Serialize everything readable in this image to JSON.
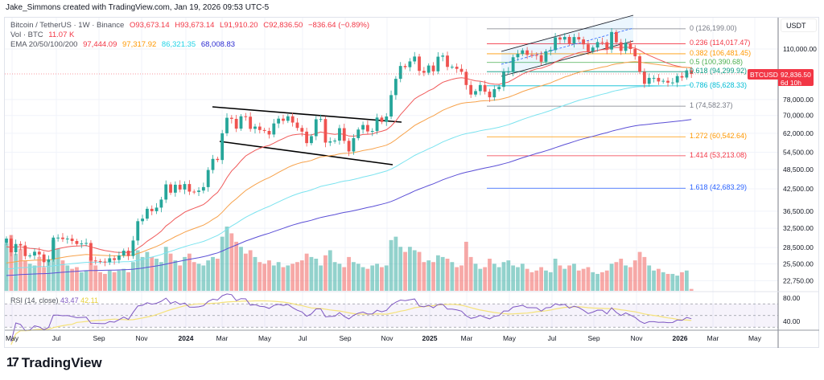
{
  "header": {
    "credit": "Jake_Simmons created with TradingView.com, Jan 19, 2026 09:53 UTC-5"
  },
  "legend": {
    "symbol": "Bitcoin / TetherUS · 1W · Binance",
    "open": "O93,673.14",
    "high": "H93,673.14",
    "low": "L91,910.20",
    "close": "C92,836.50",
    "change": "−836.64 (−0.89%)",
    "vol_label": "Vol · BTC",
    "vol_value": "11.07 K",
    "ema_label": "EMA 20/50/100/200",
    "ema20": "97,444.09",
    "ema50": "97,317.92",
    "ema100": "86,321.35",
    "ema200": "68,008.83"
  },
  "colors": {
    "up": "#26a69a",
    "down": "#ef5350",
    "ema20": "#f05a5a",
    "ema50": "#f7a24b",
    "ema100": "#7be3ef",
    "ema200": "#5b4fd6",
    "rsi": "#7e57c2",
    "rsi_ma": "#f5e27a",
    "accent": "#f23645"
  },
  "price_axis": {
    "unit": "USDT",
    "ticks": [
      "110,000.00",
      "78,000.00",
      "70,000.00",
      "62,000.00",
      "54,500.00",
      "48,500.00",
      "42,500.00",
      "36,500.00",
      "32,500.00",
      "28,500.00",
      "25,500.00",
      "22,750.00"
    ],
    "scale": "log"
  },
  "current": {
    "symbol": "BTCUSDT",
    "price": "92,836.50",
    "countdown": "6d 10h"
  },
  "fib": [
    {
      "label": "0 (126,199.00)",
      "value": 126199,
      "color": "#787b86"
    },
    {
      "label": "0.236 (114,017.47)",
      "value": 114017.47,
      "color": "#f23645"
    },
    {
      "label": "0.382 (106,481.45)",
      "value": 106481.45,
      "color": "#ff9800"
    },
    {
      "label": "0.5 (100,390.68)",
      "value": 100390.68,
      "color": "#4caf50"
    },
    {
      "label": "0.618 (94,299.92)",
      "value": 94299.92,
      "color": "#089981"
    },
    {
      "label": "0.786 (85,628.33)",
      "value": 85628.33,
      "color": "#00bcd4"
    },
    {
      "label": "1 (74,582.37)",
      "value": 74582.37,
      "color": "#787b86"
    },
    {
      "label": "1.272 (60,542.64)",
      "value": 60542.64,
      "color": "#ff9800"
    },
    {
      "label": "1.414 (53,213.08)",
      "value": 53213.08,
      "color": "#f23645"
    },
    {
      "label": "1.618 (42,683.29)",
      "value": 42683.29,
      "color": "#2962ff"
    }
  ],
  "rsi": {
    "label": "RSI (14, close)",
    "value": "43.47",
    "ma_value": "42.11",
    "ticks": [
      "80.00",
      "40.00"
    ]
  },
  "time_axis": [
    "May",
    "Jul",
    "Sep",
    "Nov",
    "2024",
    "Mar",
    "May",
    "Jul",
    "Sep",
    "Nov",
    "2025",
    "Mar",
    "May",
    "Jul",
    "Sep",
    "Nov",
    "2026",
    "Mar",
    "May"
  ],
  "footer": {
    "brand": "TradingView"
  },
  "chart_data": {
    "type": "candlestick",
    "interval": "1W",
    "start_week": "2023-04-10",
    "ylim": [
      22000,
      130000
    ],
    "yscale": "log",
    "close": [
      30300,
      27600,
      29200,
      28900,
      26900,
      27000,
      27700,
      27200,
      25800,
      26300,
      30500,
      30500,
      30200,
      30300,
      29800,
      29200,
      29300,
      29400,
      26100,
      26000,
      25900,
      25800,
      26500,
      26200,
      27000,
      27900,
      26900,
      29900,
      34100,
      34700,
      37100,
      36500,
      37400,
      39500,
      43800,
      41400,
      43700,
      42300,
      43900,
      41700,
      41600,
      42000,
      43000,
      48300,
      52100,
      51700,
      62000,
      68900,
      68400,
      64000,
      69600,
      69400,
      63900,
      64900,
      63400,
      63000,
      61500,
      66300,
      68500,
      67500,
      69600,
      66700,
      64300,
      62700,
      58000,
      60800,
      68200,
      68300,
      58200,
      58700,
      59000,
      64200,
      58900,
      54800,
      60000,
      63600,
      65600,
      62800,
      63000,
      69000,
      67000,
      69500,
      80400,
      89800,
      98000,
      97200,
      101100,
      104500,
      94800,
      93600,
      98300,
      94500,
      104400,
      105200,
      97400,
      97500,
      96100,
      94200,
      86100,
      80700,
      82600,
      86100,
      82300,
      79200,
      83700,
      85000,
      94200,
      94300,
      104000,
      106400,
      109000,
      105700,
      105600,
      105500,
      100900,
      108300,
      109200,
      119000,
      117300,
      119400,
      114200,
      119300,
      117400,
      113500,
      108200,
      111100,
      115300,
      115200,
      109600,
      123500,
      115100,
      108600,
      114500,
      110000,
      104700,
      94200,
      86800,
      90400,
      90400,
      88200,
      88600,
      87500,
      87600,
      91500,
      90600,
      95100,
      92836.5
    ],
    "volume_k": [
      280,
      330,
      220,
      250,
      180,
      160,
      150,
      200,
      140,
      170,
      300,
      250,
      180,
      150,
      130,
      140,
      110,
      120,
      200,
      150,
      110,
      100,
      120,
      110,
      120,
      130,
      110,
      170,
      240,
      200,
      230,
      200,
      190,
      170,
      260,
      220,
      180,
      150,
      200,
      220,
      170,
      160,
      150,
      180,
      200,
      190,
      320,
      380,
      340,
      290,
      260,
      220,
      240,
      200,
      170,
      160,
      180,
      150,
      170,
      140,
      150,
      160,
      170,
      180,
      220,
      200,
      190,
      150,
      210,
      240,
      170,
      160,
      140,
      200,
      170,
      160,
      140,
      130,
      150,
      160,
      140,
      150,
      300,
      320,
      260,
      230,
      260,
      240,
      230,
      170,
      180,
      170,
      210,
      200,
      190,
      170,
      140,
      150,
      290,
      200,
      160,
      130,
      140,
      190,
      160,
      140,
      170,
      180,
      150,
      140,
      160,
      130,
      110,
      120,
      140,
      120,
      110,
      190,
      150,
      130,
      150,
      160,
      120,
      130,
      140,
      110,
      100,
      110,
      120,
      160,
      170,
      190,
      150,
      140,
      180,
      230,
      200,
      150,
      120,
      130,
      110,
      100,
      100,
      90,
      110,
      120,
      11.07
    ],
    "indicators": [
      "EMA 20",
      "EMA 50",
      "EMA 100",
      "EMA 200",
      "RSI 14"
    ]
  }
}
